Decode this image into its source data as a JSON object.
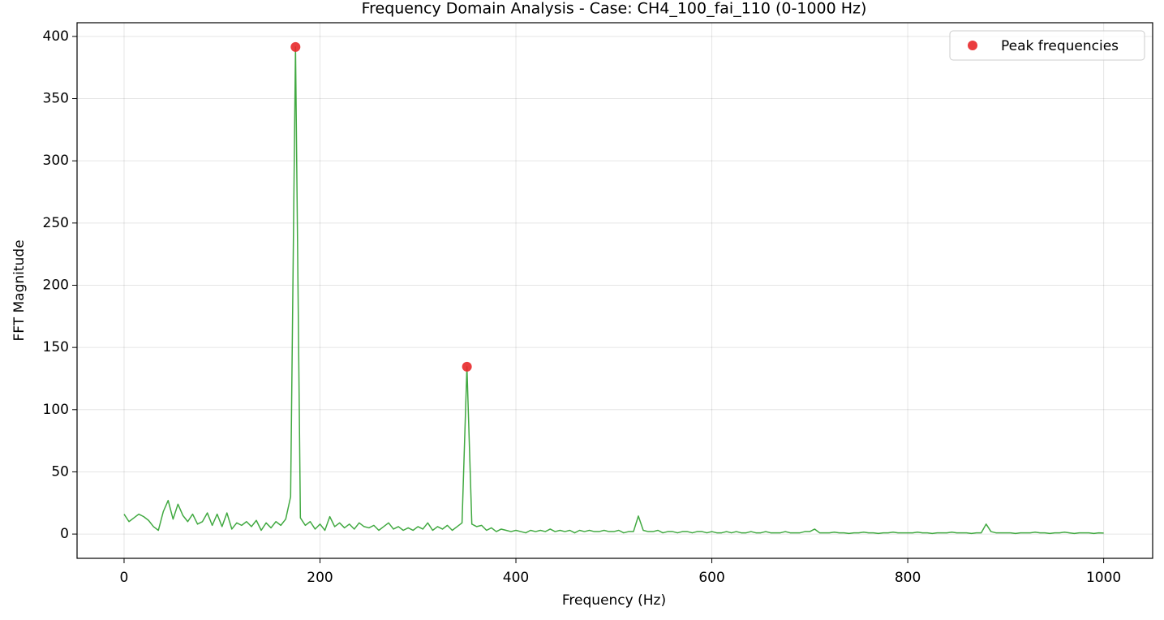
{
  "chart_data": {
    "type": "line",
    "title": "Frequency Domain Analysis - Case: CH4_100_fai_110 (0-1000 Hz)",
    "xlabel": "Frequency (Hz)",
    "ylabel": "FFT Magnitude",
    "x": [
      0,
      5,
      10,
      15,
      20,
      25,
      30,
      35,
      40,
      45,
      50,
      55,
      60,
      65,
      70,
      75,
      80,
      85,
      90,
      95,
      100,
      105,
      110,
      115,
      120,
      125,
      130,
      135,
      140,
      145,
      150,
      155,
      160,
      165,
      170,
      175,
      180,
      185,
      190,
      195,
      200,
      205,
      210,
      215,
      220,
      225,
      230,
      235,
      240,
      245,
      250,
      255,
      260,
      265,
      270,
      275,
      280,
      285,
      290,
      295,
      300,
      305,
      310,
      315,
      320,
      325,
      330,
      335,
      340,
      345,
      350,
      355,
      360,
      365,
      370,
      375,
      380,
      385,
      390,
      395,
      400,
      405,
      410,
      415,
      420,
      425,
      430,
      435,
      440,
      445,
      450,
      455,
      460,
      465,
      470,
      475,
      480,
      485,
      490,
      495,
      500,
      505,
      510,
      515,
      520,
      525,
      530,
      535,
      540,
      545,
      550,
      555,
      560,
      565,
      570,
      575,
      580,
      585,
      590,
      595,
      600,
      605,
      610,
      615,
      620,
      625,
      630,
      635,
      640,
      645,
      650,
      655,
      660,
      665,
      670,
      675,
      680,
      685,
      690,
      695,
      700,
      705,
      710,
      715,
      720,
      725,
      730,
      735,
      740,
      745,
      750,
      755,
      760,
      765,
      770,
      775,
      780,
      785,
      790,
      795,
      800,
      805,
      810,
      815,
      820,
      825,
      830,
      835,
      840,
      845,
      850,
      855,
      860,
      865,
      870,
      875,
      880,
      885,
      890,
      895,
      900,
      905,
      910,
      915,
      920,
      925,
      930,
      935,
      940,
      945,
      950,
      955,
      960,
      965,
      970,
      975,
      980,
      985,
      990,
      995,
      1000
    ],
    "series": [
      {
        "color": "#2ca02c",
        "values": [
          16,
          10,
          13,
          16,
          14,
          11,
          6,
          3,
          18,
          27,
          12,
          24,
          15,
          10,
          16,
          8,
          10,
          17,
          7,
          16,
          6,
          17,
          4,
          9,
          7,
          10,
          6,
          11,
          3,
          9,
          5,
          10,
          7,
          12,
          30,
          391.5,
          13,
          7,
          10,
          4,
          8,
          3,
          14,
          6,
          9,
          5,
          8,
          4,
          9,
          6,
          5,
          7,
          3,
          6,
          9,
          4,
          6,
          3,
          5,
          3,
          6,
          4,
          9,
          3,
          6,
          4,
          7,
          3,
          6,
          9,
          134.5,
          8,
          6,
          7,
          3,
          5,
          2,
          4,
          3,
          2,
          3,
          2,
          1,
          3,
          2,
          3,
          2,
          4,
          2,
          3,
          2,
          3,
          1,
          3,
          2,
          3,
          2,
          2,
          3,
          2,
          2,
          3,
          1,
          2,
          2,
          14.5,
          3,
          2,
          2,
          3,
          1,
          2,
          2,
          1,
          2,
          2,
          1,
          2,
          2,
          1,
          2,
          1,
          1,
          2,
          1,
          2,
          1,
          1,
          2,
          1,
          1,
          2,
          1,
          1,
          1,
          2,
          1,
          1,
          1,
          2,
          2,
          4,
          1,
          1,
          1,
          1.5,
          1,
          1,
          0.5,
          1,
          1,
          1.5,
          1,
          1,
          0.5,
          1,
          1,
          1.5,
          1,
          1,
          1,
          1,
          1.5,
          1,
          1,
          0.5,
          1,
          1,
          1,
          1.5,
          1,
          1,
          1,
          0.5,
          1,
          1,
          8,
          2,
          1,
          1,
          1,
          1,
          0.5,
          1,
          1,
          1,
          1.5,
          1,
          1,
          0.5,
          1,
          1,
          1.5,
          1,
          0.5,
          1,
          1,
          1,
          0.5,
          1,
          0.8
        ]
      },
      {
        "name": "Peak frequencies",
        "color": "#e8282a",
        "marker": "o",
        "x": [
          175,
          350
        ],
        "values": [
          391.5,
          134.5
        ]
      }
    ],
    "xlim": [
      -48,
      1050
    ],
    "ylim": [
      -19.5,
      411
    ],
    "xticks": [
      0,
      200,
      400,
      600,
      800,
      1000
    ],
    "yticks": [
      0,
      50,
      100,
      150,
      200,
      250,
      300,
      350,
      400
    ],
    "grid": true,
    "legend": "upper right"
  }
}
